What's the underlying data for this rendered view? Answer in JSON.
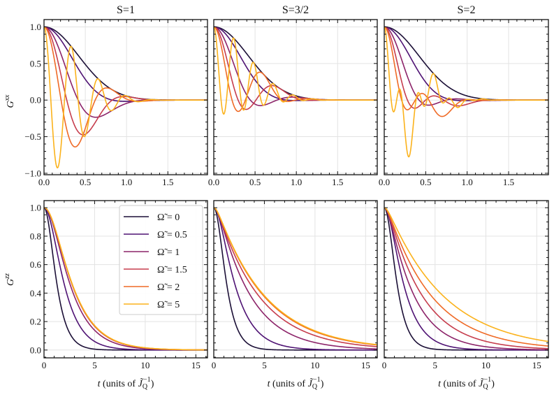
{
  "colors": {
    "0": "#1b0f36",
    "0.5": "#4e1273",
    "1": "#8c2369",
    "1.5": "#c63d4d",
    "2": "#ef6a26",
    "5": "#fbb21b"
  },
  "columns": [
    "S=1",
    "S=3/2",
    "S=2"
  ],
  "ylabels": {
    "top": {
      "base": "G",
      "sup": "xx"
    },
    "bottom": {
      "base": "G",
      "sup": "zz"
    }
  },
  "xlabel": {
    "var": "t",
    "prefix": " (units of ",
    "sym": "J̃",
    "sub": "Q",
    "sup": "−1",
    "suffix": ")"
  },
  "legend": {
    "placement": "upper-right of bottom-left panel",
    "entries": [
      {
        "omega": "0",
        "label": "Ω̃ = 0"
      },
      {
        "omega": "0.5",
        "label": "Ω̃ = 0.5"
      },
      {
        "omega": "1",
        "label": "Ω̃ = 1"
      },
      {
        "omega": "1.5",
        "label": "Ω̃ = 1.5"
      },
      {
        "omega": "2",
        "label": "Ω̃ = 2"
      },
      {
        "omega": "5",
        "label": "Ω̃ = 5"
      }
    ]
  },
  "chart_data": [
    {
      "type": "line",
      "row": "top",
      "title": "S=1",
      "ylabel": "Gxx",
      "xlim": [
        0,
        1.98
      ],
      "ylim": [
        -1.02,
        1.1
      ],
      "xticks": [
        "0.0",
        "0.5",
        "1.0",
        "1.5"
      ],
      "xtick_values": [
        0,
        0.5,
        1,
        1.5
      ],
      "yticks": [
        "−1.0",
        "−0.5",
        "0.0",
        "0.5",
        "1.0"
      ],
      "ytick_values": [
        -1,
        -0.5,
        0,
        0.5,
        1
      ],
      "grid": true,
      "envelope_tau": 0.59,
      "a0": 0,
      "a1": 1,
      "a3": 0,
      "freq_per_omega": 3.8,
      "omegas": [
        0,
        0.5,
        1,
        1.5,
        2,
        5
      ]
    },
    {
      "type": "line",
      "row": "top",
      "title": "S=3/2",
      "ylabel": "Gxx",
      "xlim": [
        0,
        1.98
      ],
      "ylim": [
        -1.02,
        1.1
      ],
      "xticks": [
        "0.0",
        "0.5",
        "1.0",
        "1.5"
      ],
      "xtick_values": [
        0,
        0.5,
        1,
        1.5
      ],
      "ytick_values": [
        -1,
        -0.5,
        0,
        0.5,
        1
      ],
      "grid": true,
      "envelope_tau": 0.59,
      "a0": 0.4,
      "a1": 0.6,
      "a3": 0,
      "freq_per_omega": 5.2,
      "omegas": [
        0,
        0.5,
        1,
        1.5,
        2,
        5
      ]
    },
    {
      "type": "line",
      "row": "top",
      "title": "S=2",
      "ylabel": "Gxx",
      "xlim": [
        0,
        1.98
      ],
      "ylim": [
        -1.02,
        1.1
      ],
      "xticks": [
        "0.0",
        "0.5",
        "1.0",
        "1.5"
      ],
      "xtick_values": [
        0,
        0.5,
        1,
        1.5
      ],
      "ytick_values": [
        -1,
        -0.5,
        0,
        0.5,
        1
      ],
      "grid": true,
      "envelope_tau": 0.59,
      "a0": 0,
      "a1": 0.58,
      "a3": 0.42,
      "freq_per_omega": 2.1,
      "omegas": [
        0,
        0.5,
        1,
        1.5,
        2,
        5
      ]
    },
    {
      "type": "line",
      "row": "bottom",
      "title": "S=1",
      "ylabel": "Gzz",
      "xlim": [
        0,
        16.15
      ],
      "ylim": [
        -0.055,
        1.05
      ],
      "xticks": [
        "0",
        "5",
        "10",
        "15"
      ],
      "xtick_values": [
        0,
        5,
        10,
        15
      ],
      "yticks": [
        "0.0",
        "0.2",
        "0.4",
        "0.6",
        "0.8",
        "1.0"
      ],
      "ytick_values": [
        0,
        0.2,
        0.4,
        0.6,
        0.8,
        1
      ],
      "grid": true,
      "series": [
        {
          "omega": "0",
          "a": 1.0,
          "T": 0.81
        },
        {
          "omega": "0.5",
          "a": 1.4,
          "T": 1.35
        },
        {
          "omega": "1",
          "a": 1.6,
          "T": 1.85
        },
        {
          "omega": "1.5",
          "a": 1.7,
          "T": 2.0
        },
        {
          "omega": "2",
          "a": 1.7,
          "T": 2.02
        },
        {
          "omega": "5",
          "a": 1.7,
          "T": 2.04
        }
      ]
    },
    {
      "type": "line",
      "row": "bottom",
      "title": "S=3/2",
      "ylabel": "Gzz",
      "xlim": [
        0,
        16.15
      ],
      "ylim": [
        -0.055,
        1.05
      ],
      "xticks": [
        "0",
        "5",
        "10",
        "15"
      ],
      "xtick_values": [
        0,
        5,
        10,
        15
      ],
      "ytick_values": [
        0,
        0.2,
        0.4,
        0.6,
        0.8,
        1
      ],
      "grid": true,
      "series": [
        {
          "omega": "0",
          "a": 1.0,
          "T": 0.81
        },
        {
          "omega": "0.5",
          "a": 1.0,
          "T": 1.7
        },
        {
          "omega": "1",
          "a": 0.6,
          "T": 3.2
        },
        {
          "omega": "1.5",
          "a": 0.4,
          "T": 4.2
        },
        {
          "omega": "2",
          "a": 0.4,
          "T": 4.7
        },
        {
          "omega": "5",
          "a": 0.4,
          "T": 4.8
        }
      ]
    },
    {
      "type": "line",
      "row": "bottom",
      "title": "S=2",
      "ylabel": "Gzz",
      "xlim": [
        0,
        16.15
      ],
      "ylim": [
        -0.055,
        1.05
      ],
      "xticks": [
        "0",
        "5",
        "10",
        "15"
      ],
      "xtick_values": [
        0,
        5,
        10,
        15
      ],
      "ytick_values": [
        0,
        0.2,
        0.4,
        0.6,
        0.8,
        1
      ],
      "grid": true,
      "series": [
        {
          "omega": "0",
          "a": 1.0,
          "T": 0.8
        },
        {
          "omega": "0.5",
          "a": 1.0,
          "T": 1.5
        },
        {
          "omega": "1",
          "a": 0.6,
          "T": 2.5
        },
        {
          "omega": "1.5",
          "a": 0.5,
          "T": 3.4
        },
        {
          "omega": "2",
          "a": 0.4,
          "T": 4.4
        },
        {
          "omega": "5",
          "a": 0.4,
          "T": 5.6
        }
      ]
    }
  ]
}
